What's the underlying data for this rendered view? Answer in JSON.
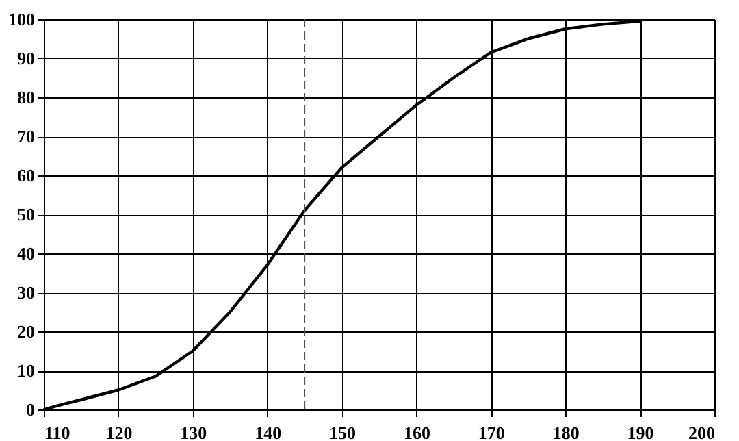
{
  "chart_data": {
    "type": "line",
    "x": [
      110,
      112.5,
      115,
      120,
      125,
      130,
      135,
      140,
      145,
      150,
      155,
      160,
      165,
      170,
      175,
      180,
      185,
      190
    ],
    "series": [
      {
        "color": "#000000",
        "values": [
          0,
          1.3,
          2.5,
          5,
          8.5,
          15,
          25,
          37,
          51,
          62,
          70,
          78,
          85,
          91.5,
          95,
          97.5,
          98.7,
          99.5
        ]
      }
    ],
    "xlim": [
      110,
      200
    ],
    "xticks": [
      110,
      120,
      130,
      140,
      150,
      160,
      170,
      180,
      190,
      200
    ],
    "ylim": [
      0,
      100
    ],
    "yticks": [
      0,
      10,
      20,
      30,
      40,
      50,
      60,
      70,
      80,
      90,
      100
    ],
    "grid": true,
    "marker": "none",
    "line_style": "solid",
    "ref_lines": [
      {
        "axis": "x",
        "value": 145,
        "color": "#555555",
        "line_style": "dashed"
      }
    ]
  }
}
